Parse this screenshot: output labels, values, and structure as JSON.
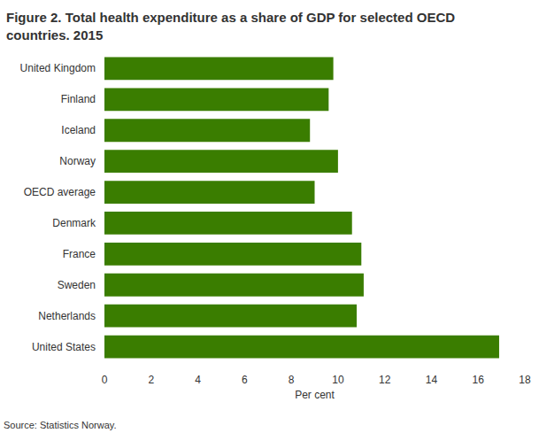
{
  "chart_data": {
    "type": "bar",
    "orientation": "horizontal",
    "title": "Figure 2. Total health expenditure as a share of GDP for selected OECD countries. 2015",
    "xlabel": "Per cent",
    "annotations": [
      "Source: Statistics Norway."
    ],
    "categories": [
      "United Kingdom",
      "Finland",
      "Iceland",
      "Norway",
      "OECD average",
      "Denmark",
      "France",
      "Sweden",
      "Netherlands",
      "United States"
    ],
    "values": [
      9.8,
      9.6,
      8.8,
      10.0,
      9.0,
      10.6,
      11.0,
      11.1,
      10.8,
      16.9
    ],
    "color": "#3a7d00",
    "xlim": [
      0,
      18
    ],
    "xticks": [
      0,
      2,
      4,
      6,
      8,
      10,
      12,
      14,
      16,
      18
    ],
    "grid": false
  }
}
